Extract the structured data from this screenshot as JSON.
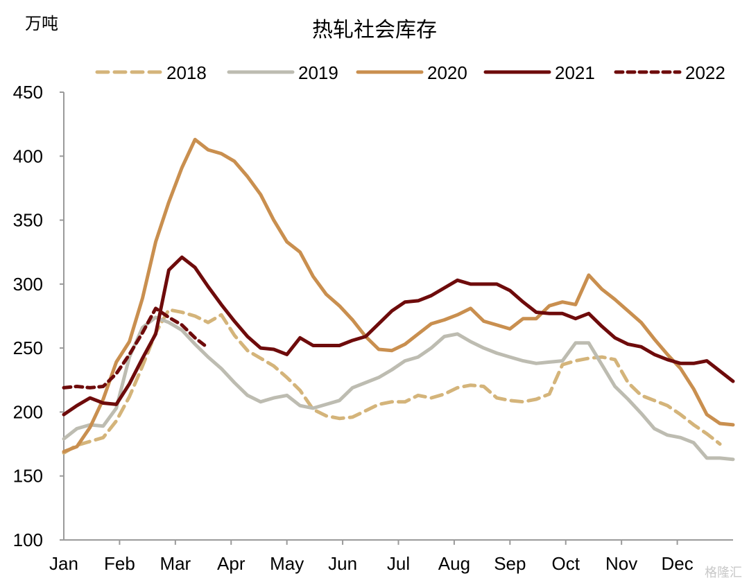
{
  "chart_data": {
    "type": "line",
    "title": "热轧社会库存",
    "ylabel": "万吨",
    "ylim": [
      100,
      450
    ],
    "yticks": [
      "100",
      "150",
      "200",
      "250",
      "300",
      "350",
      "400",
      "450"
    ],
    "xticks": [
      "Jan",
      "Feb",
      "Mar",
      "Apr",
      "May",
      "Jun",
      "Jul",
      "Aug",
      "Sep",
      "Oct",
      "Nov",
      "Dec"
    ],
    "x_unit": "week",
    "legend_position": "top",
    "series": [
      {
        "name": "2018",
        "color": "#d4b47a",
        "dash": "dashed",
        "values": [
          168,
          174,
          177,
          180,
          193,
          212,
          236,
          262,
          280,
          278,
          275,
          270,
          276,
          260,
          248,
          242,
          236,
          227,
          217,
          202,
          197,
          195,
          196,
          201,
          206,
          208,
          208,
          213,
          211,
          214,
          219,
          221,
          220,
          211,
          209,
          208,
          210,
          214,
          237,
          240,
          242,
          243,
          241,
          223,
          213,
          209,
          205,
          198,
          190,
          183,
          175
        ]
      },
      {
        "name": "2019",
        "color": "#bdbcb1",
        "dash": "solid",
        "values": [
          179,
          187,
          190,
          189,
          203,
          243,
          266,
          274,
          270,
          264,
          253,
          243,
          234,
          223,
          213,
          208,
          211,
          213,
          205,
          203,
          206,
          209,
          219,
          223,
          227,
          233,
          240,
          243,
          250,
          259,
          261,
          255,
          250,
          246,
          243,
          240,
          238,
          239,
          240,
          254,
          254,
          237,
          220,
          210,
          199,
          187,
          182,
          180,
          176,
          164,
          164,
          163
        ]
      },
      {
        "name": "2020",
        "color": "#c98f4f",
        "dash": "solid",
        "values": [
          169,
          173,
          188,
          210,
          239,
          255,
          289,
          333,
          364,
          391,
          413,
          405,
          402,
          396,
          384,
          370,
          350,
          333,
          325,
          306,
          292,
          283,
          272,
          259,
          249,
          248,
          253,
          261,
          269,
          272,
          276,
          281,
          271,
          268,
          265,
          273,
          273,
          283,
          286,
          284,
          307,
          296,
          288,
          279,
          270,
          257,
          245,
          234,
          218,
          198,
          191,
          190
        ]
      },
      {
        "name": "2021",
        "color": "#6e0b0b",
        "dash": "solid",
        "values": [
          198,
          205,
          211,
          207,
          206,
          222,
          242,
          261,
          311,
          321,
          313,
          298,
          284,
          271,
          259,
          250,
          249,
          245,
          258,
          252,
          252,
          252,
          256,
          259,
          269,
          279,
          286,
          287,
          291,
          297,
          303,
          300,
          300,
          300,
          295,
          286,
          278,
          277,
          277,
          273,
          277,
          267,
          258,
          253,
          251,
          245,
          241,
          238,
          238,
          240,
          232,
          224
        ]
      },
      {
        "name": "2022",
        "color": "#6e0b0b",
        "dash": "dotted",
        "values": [
          219,
          220,
          219,
          220,
          230,
          245,
          262,
          281,
          274,
          268,
          258,
          250
        ]
      }
    ]
  },
  "watermark": "格隆汇"
}
